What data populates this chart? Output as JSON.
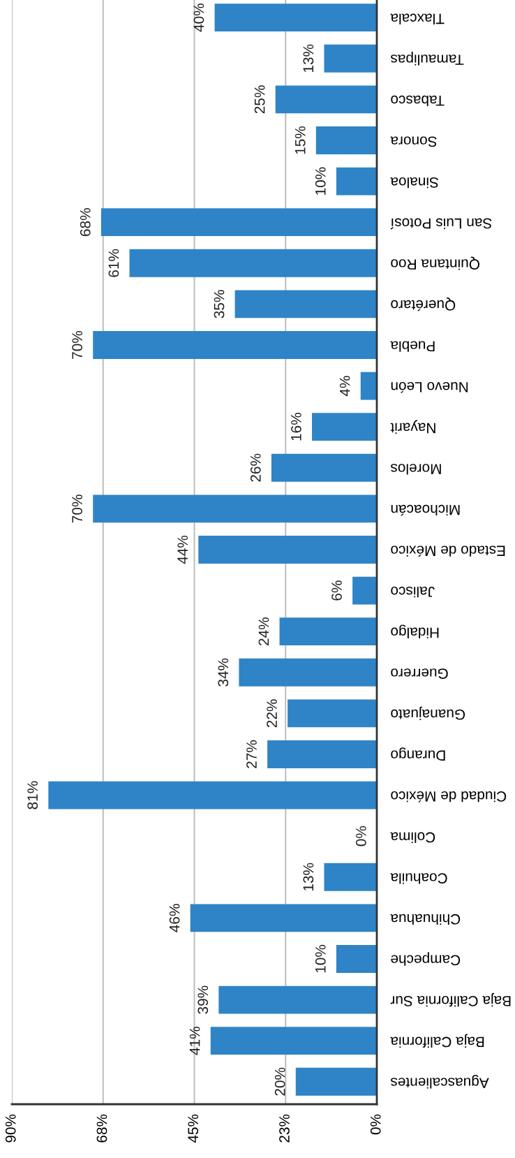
{
  "chart_data": {
    "type": "bar",
    "orientation": "horizontal",
    "color": "#2e84c6",
    "categories": [
      "Tlaxcala",
      "Tamaulipas",
      "Tabasco",
      "Sonora",
      "Sinaloa",
      "San Luis Potosí",
      "Quintana Roo",
      "Querétaro",
      "Puebla",
      "Nuevo León",
      "Nayarit",
      "Morelos",
      "Michoacán",
      "Estado de México",
      "Jalisco",
      "Hidalgo",
      "Guerrero",
      "Guanajuato",
      "Durango",
      "Ciudad de México",
      "Colima",
      "Coahuila",
      "Chihuahua",
      "Campeche",
      "Baja California Sur",
      "Baja California",
      "Aguascalientes"
    ],
    "values": [
      40,
      13,
      25,
      15,
      10,
      68,
      61,
      35,
      70,
      4,
      16,
      26,
      70,
      44,
      6,
      24,
      34,
      22,
      27,
      81,
      0,
      13,
      46,
      10,
      39,
      41,
      20
    ],
    "value_labels": [
      "40%",
      "13%",
      "25%",
      "15%",
      "10%",
      "68%",
      "61%",
      "35%",
      "70%",
      "4%",
      "16%",
      "26%",
      "70%",
      "44%",
      "6%",
      "24%",
      "34%",
      "22%",
      "27%",
      "81%",
      "0%",
      "13%",
      "46%",
      "10%",
      "39%",
      "41%",
      "20%"
    ],
    "xlim": [
      90,
      0
    ],
    "xticks": [
      {
        "value": 90,
        "label": "90%"
      },
      {
        "value": 67.5,
        "label": "68%"
      },
      {
        "value": 45,
        "label": "45%"
      },
      {
        "value": 22.5,
        "label": "23%"
      },
      {
        "value": 0,
        "label": "0%"
      }
    ],
    "grid": "x",
    "legend": false
  }
}
